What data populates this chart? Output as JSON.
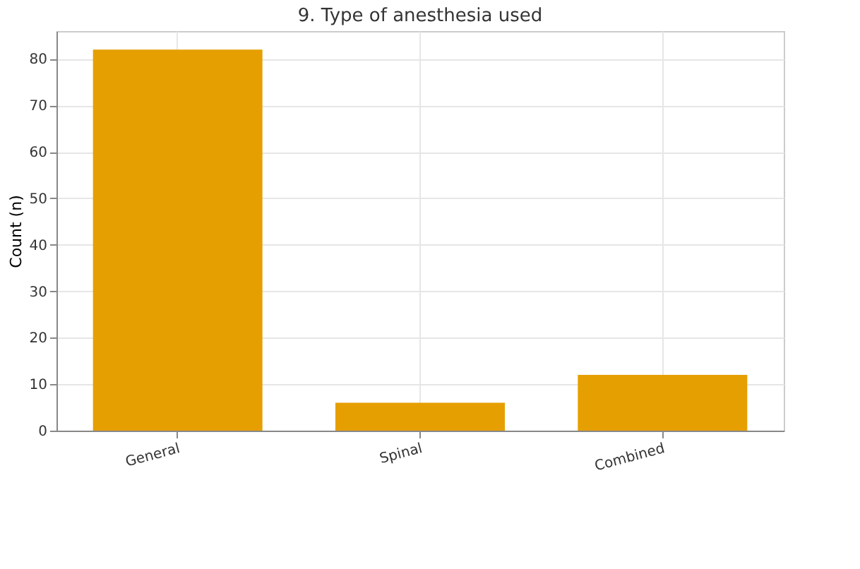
{
  "chart_data": {
    "type": "bar",
    "title": "9. Type of anesthesia used",
    "ylabel": "Count (n)",
    "categories": [
      "General",
      "Spinal",
      "Combined"
    ],
    "values": [
      82,
      6,
      12
    ],
    "color": "#e69f00",
    "ylim": [
      0,
      86
    ],
    "yticks": [
      0,
      10,
      20,
      30,
      40,
      50,
      60,
      70,
      80
    ],
    "grid": true
  }
}
